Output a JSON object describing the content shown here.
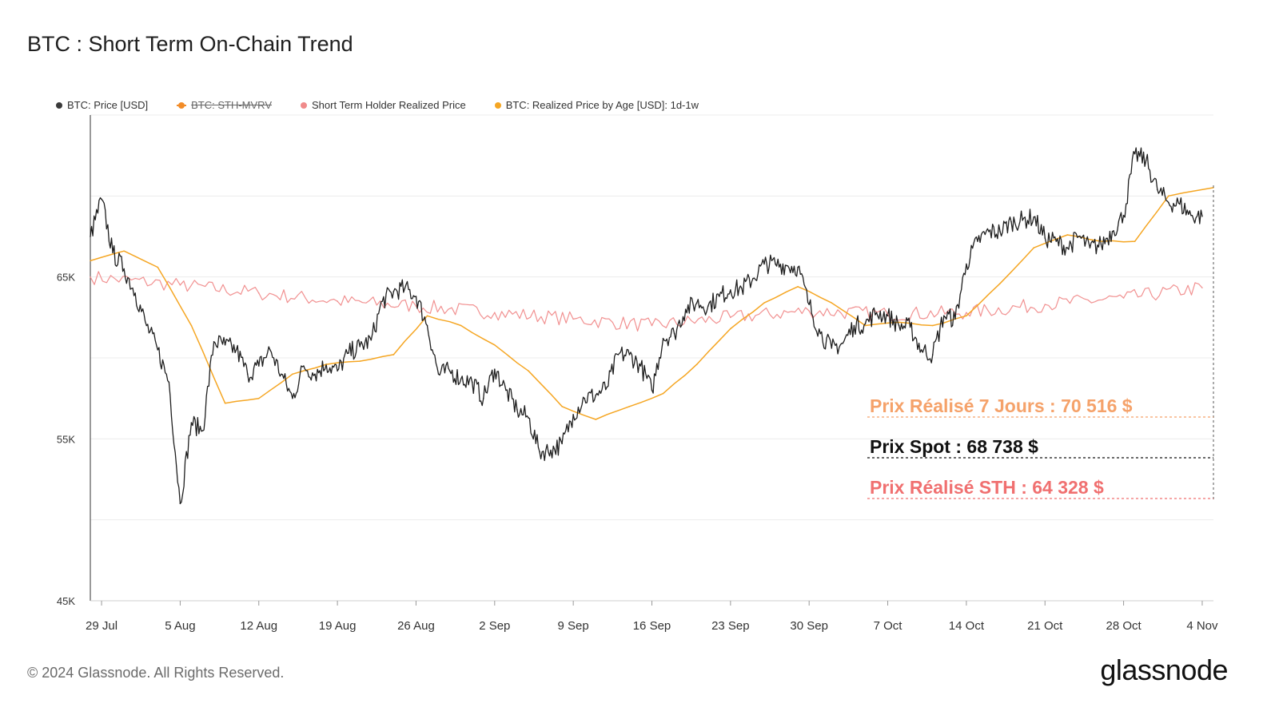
{
  "title": "BTC : Short Term On-Chain Trend",
  "copyright": "© 2024 Glassnode. All Rights Reserved.",
  "brand": "glassnode",
  "legend": [
    {
      "label": "BTC: Price [USD]",
      "color": "#3a3a3a",
      "enabled": true
    },
    {
      "label": "BTC: STH-MVRV",
      "color": "#f28c28",
      "enabled": false
    },
    {
      "label": "Short Term Holder Realized Price",
      "color": "#f08a8a",
      "enabled": true
    },
    {
      "label": "BTC: Realized Price by Age [USD]: 1d-1w",
      "color": "#f5a623",
      "enabled": true
    }
  ],
  "annotations": {
    "realized_7d": {
      "text": "Prix Réalisé 7 Jours : 70 516 $",
      "color": "#f5a26a"
    },
    "spot": {
      "text": "Prix Spot : 68 738 $",
      "color": "#111111"
    },
    "realized_sth": {
      "text": "Prix Réalisé STH : 64 328 $",
      "color": "#f07070"
    }
  },
  "chart_data": {
    "type": "line",
    "x_tick_labels": [
      "29 Jul",
      "5 Aug",
      "12 Aug",
      "19 Aug",
      "26 Aug",
      "2 Sep",
      "9 Sep",
      "16 Sep",
      "23 Sep",
      "30 Sep",
      "7 Oct",
      "14 Oct",
      "21 Oct",
      "28 Oct",
      "4 Nov"
    ],
    "x_tick_dates": [
      "2024-07-29",
      "2024-08-05",
      "2024-08-12",
      "2024-08-19",
      "2024-08-26",
      "2024-09-02",
      "2024-09-09",
      "2024-09-16",
      "2024-09-23",
      "2024-09-30",
      "2024-10-07",
      "2024-10-14",
      "2024-10-21",
      "2024-10-28",
      "2024-11-04"
    ],
    "y_tick_labels": [
      "45K",
      "55K",
      "65K"
    ],
    "y_tick_values": [
      45000,
      55000,
      65000
    ],
    "ylim": [
      45000,
      75000
    ],
    "xlim": [
      "2024-07-28",
      "2024-11-05"
    ],
    "grid": true,
    "legend_position": "top-left",
    "series": [
      {
        "name": "BTC: Price [USD]",
        "color": "#1e1e1e",
        "dates": [
          "2024-07-28",
          "2024-07-29",
          "2024-07-30",
          "2024-07-31",
          "2024-08-01",
          "2024-08-02",
          "2024-08-03",
          "2024-08-04",
          "2024-08-05",
          "2024-08-06",
          "2024-08-07",
          "2024-08-08",
          "2024-08-09",
          "2024-08-10",
          "2024-08-11",
          "2024-08-12",
          "2024-08-13",
          "2024-08-14",
          "2024-08-15",
          "2024-08-16",
          "2024-08-17",
          "2024-08-18",
          "2024-08-19",
          "2024-08-20",
          "2024-08-21",
          "2024-08-22",
          "2024-08-23",
          "2024-08-24",
          "2024-08-25",
          "2024-08-26",
          "2024-08-27",
          "2024-08-28",
          "2024-08-29",
          "2024-08-30",
          "2024-08-31",
          "2024-09-01",
          "2024-09-02",
          "2024-09-03",
          "2024-09-04",
          "2024-09-05",
          "2024-09-06",
          "2024-09-07",
          "2024-09-08",
          "2024-09-09",
          "2024-09-10",
          "2024-09-11",
          "2024-09-12",
          "2024-09-13",
          "2024-09-14",
          "2024-09-15",
          "2024-09-16",
          "2024-09-17",
          "2024-09-18",
          "2024-09-19",
          "2024-09-20",
          "2024-09-21",
          "2024-09-22",
          "2024-09-23",
          "2024-09-24",
          "2024-09-25",
          "2024-09-26",
          "2024-09-27",
          "2024-09-28",
          "2024-09-29",
          "2024-09-30",
          "2024-10-01",
          "2024-10-02",
          "2024-10-03",
          "2024-10-04",
          "2024-10-05",
          "2024-10-06",
          "2024-10-07",
          "2024-10-08",
          "2024-10-09",
          "2024-10-10",
          "2024-10-11",
          "2024-10-12",
          "2024-10-13",
          "2024-10-14",
          "2024-10-15",
          "2024-10-16",
          "2024-10-17",
          "2024-10-18",
          "2024-10-19",
          "2024-10-20",
          "2024-10-21",
          "2024-10-22",
          "2024-10-23",
          "2024-10-24",
          "2024-10-25",
          "2024-10-26",
          "2024-10-27",
          "2024-10-28",
          "2024-10-29",
          "2024-10-30",
          "2024-10-31",
          "2024-11-01",
          "2024-11-02",
          "2024-11-03",
          "2024-11-04",
          "2024-11-05"
        ],
        "values": [
          67500,
          69800,
          66500,
          65500,
          64000,
          62000,
          60500,
          58500,
          51000,
          56000,
          55500,
          61000,
          60800,
          60500,
          59000,
          59500,
          60500,
          59000,
          57500,
          59500,
          59000,
          59600,
          59200,
          60300,
          60700,
          61100,
          63500,
          64100,
          64300,
          63800,
          62000,
          59000,
          59200,
          58700,
          58500,
          57500,
          59300,
          58000,
          56800,
          56300,
          54200,
          54300,
          54700,
          56500,
          57500,
          57700,
          58200,
          60200,
          60200,
          59500,
          58000,
          61200,
          61500,
          63000,
          63400,
          63200,
          63800,
          64200,
          64300,
          64900,
          65800,
          65800,
          65700,
          65600,
          63300,
          61500,
          60600,
          60900,
          62000,
          62100,
          62800,
          62600,
          62000,
          61900,
          60500,
          60200,
          62600,
          62400,
          65800,
          67200,
          67800,
          67800,
          68400,
          68500,
          68700,
          67400,
          67200,
          66800,
          67500,
          66800,
          67000,
          67800,
          68800,
          72600,
          72200,
          70400,
          69600,
          69500,
          68800,
          68738,
          null
        ]
      },
      {
        "name": "Short Term Holder Realized Price",
        "color": "#f08a8a",
        "dates": [
          "2024-07-28",
          "2024-08-05",
          "2024-08-12",
          "2024-08-19",
          "2024-08-26",
          "2024-09-02",
          "2024-09-09",
          "2024-09-16",
          "2024-09-23",
          "2024-09-30",
          "2024-10-07",
          "2024-10-14",
          "2024-10-21",
          "2024-10-28",
          "2024-11-04"
        ],
        "values": [
          65000,
          64500,
          64000,
          63500,
          63200,
          62800,
          62400,
          62000,
          62500,
          62900,
          62700,
          62800,
          63300,
          63700,
          64328
        ]
      },
      {
        "name": "BTC: Realized Price by Age [USD]: 1d-1w",
        "color": "#f5a623",
        "dates": [
          "2024-07-28",
          "2024-07-31",
          "2024-08-03",
          "2024-08-06",
          "2024-08-09",
          "2024-08-12",
          "2024-08-15",
          "2024-08-18",
          "2024-08-21",
          "2024-08-24",
          "2024-08-27",
          "2024-08-30",
          "2024-09-02",
          "2024-09-05",
          "2024-09-08",
          "2024-09-11",
          "2024-09-14",
          "2024-09-17",
          "2024-09-20",
          "2024-09-23",
          "2024-09-26",
          "2024-09-29",
          "2024-10-02",
          "2024-10-05",
          "2024-10-08",
          "2024-10-11",
          "2024-10-14",
          "2024-10-17",
          "2024-10-20",
          "2024-10-23",
          "2024-10-26",
          "2024-10-29",
          "2024-11-01",
          "2024-11-05"
        ],
        "values": [
          66000,
          66600,
          65600,
          62000,
          57200,
          57500,
          59000,
          59600,
          59800,
          60200,
          62600,
          62000,
          60800,
          59200,
          57000,
          56200,
          57000,
          57800,
          59600,
          61800,
          63400,
          64400,
          63400,
          62000,
          62200,
          62000,
          62600,
          64600,
          66800,
          67600,
          67200,
          67200,
          70000,
          70516
        ]
      }
    ]
  }
}
